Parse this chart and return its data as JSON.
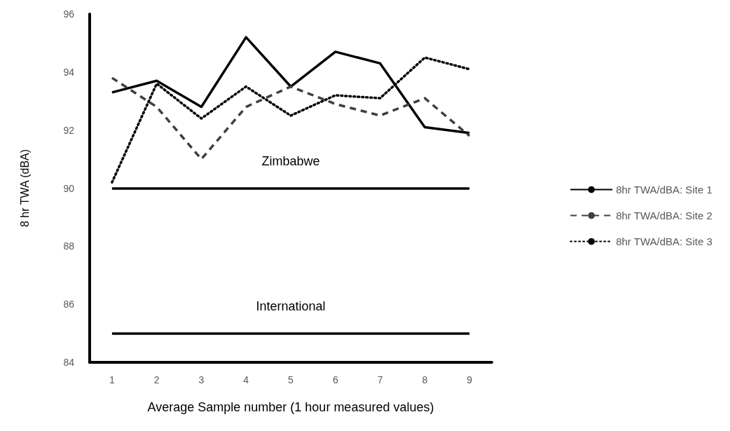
{
  "chart_data": {
    "type": "line",
    "xlabel": "Average Sample number (1 hour measured values)",
    "ylabel": "8 hr TWA (dBA)",
    "categories": [
      "1",
      "2",
      "3",
      "4",
      "5",
      "6",
      "7",
      "8",
      "9"
    ],
    "series": [
      {
        "name": "8hr TWA/dBA: Site 1",
        "color": "#000000",
        "line_style": "solid",
        "values": [
          93.3,
          93.7,
          92.8,
          95.2,
          93.5,
          94.7,
          94.3,
          92.1,
          91.9
        ]
      },
      {
        "name": "8hr TWA/dBA: Site 2",
        "color": "#404040",
        "line_style": "dashed",
        "values": [
          93.8,
          92.8,
          91.0,
          92.8,
          93.5,
          92.9,
          92.5,
          93.1,
          91.8
        ]
      },
      {
        "name": "8hr TWA/dBA: Site 3",
        "color": "#000000",
        "line_style": "dotted",
        "values": [
          90.2,
          93.6,
          92.4,
          93.5,
          92.5,
          93.2,
          93.1,
          94.5,
          94.1
        ]
      }
    ],
    "ref_lines": [
      {
        "axis": "y",
        "value": 90,
        "label": "Zimbabwe",
        "color": "#000000"
      },
      {
        "axis": "y",
        "value": 85,
        "label": "International",
        "color": "#000000"
      }
    ],
    "ylim": [
      84,
      96
    ],
    "yticks": [
      84,
      86,
      88,
      90,
      92,
      94,
      96
    ],
    "grid": false,
    "legend": "right",
    "marker": "none"
  }
}
